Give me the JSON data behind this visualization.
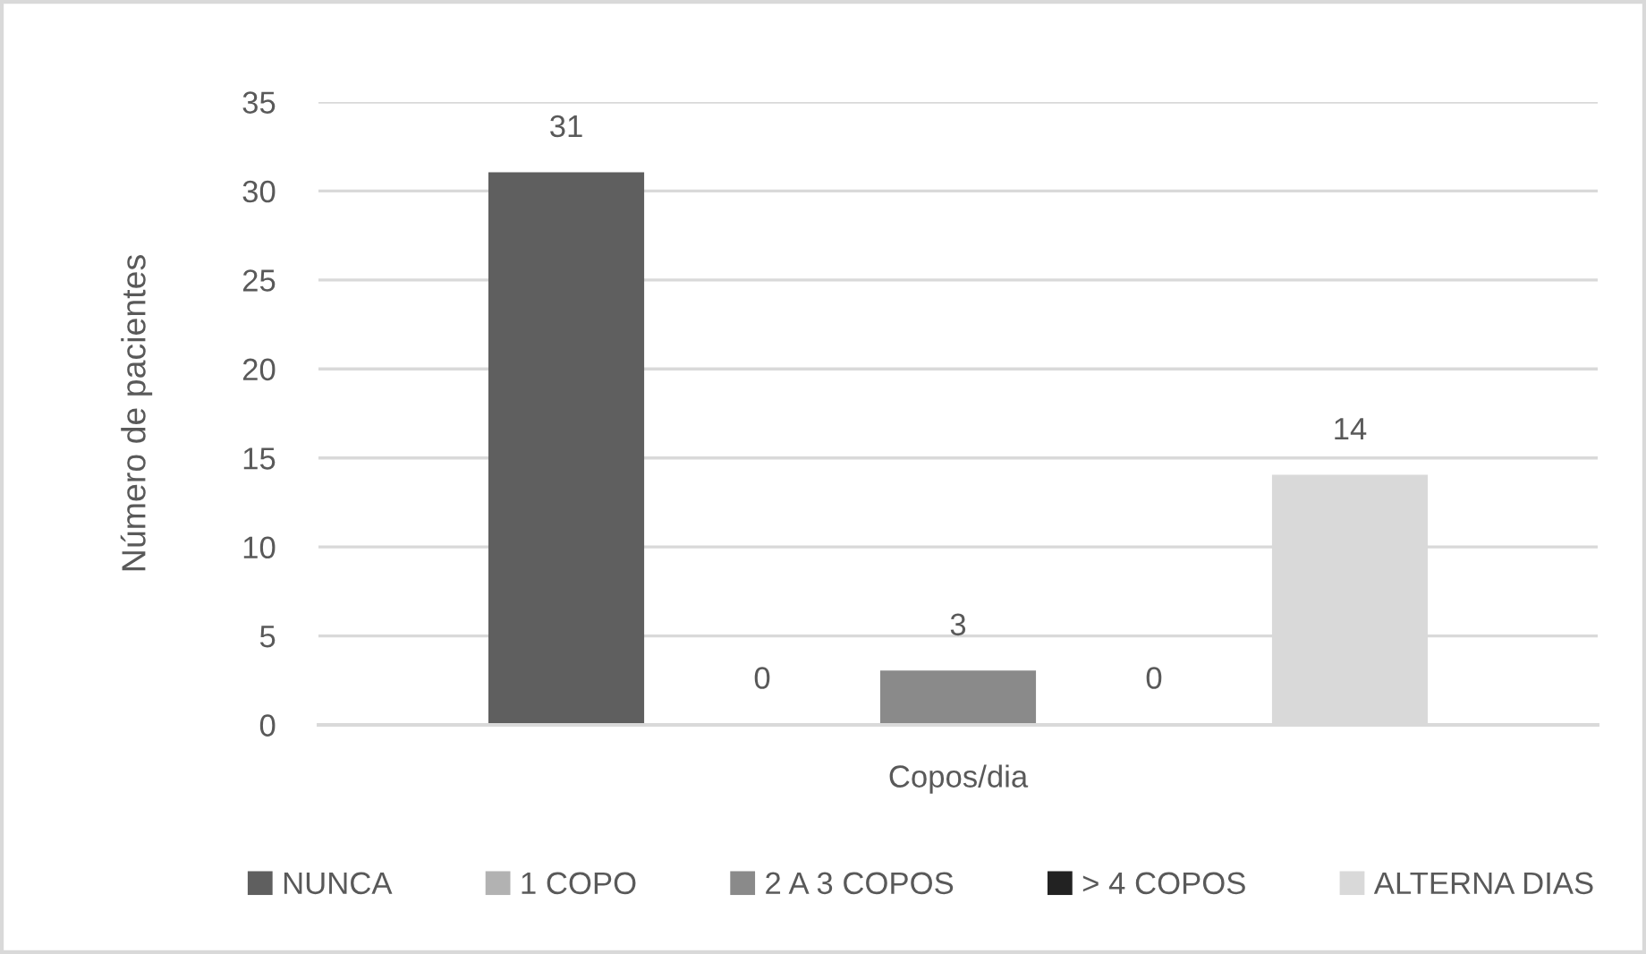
{
  "chart_data": {
    "type": "bar",
    "categories": [
      "Copos/dia"
    ],
    "series": [
      {
        "name": "NUNCA",
        "color": "#5f5f5f",
        "values": [
          31
        ]
      },
      {
        "name": "1 COPO",
        "color": "#b2b2b2",
        "values": [
          0
        ]
      },
      {
        "name": "2 A 3 COPOS",
        "color": "#8a8a8a",
        "values": [
          3
        ]
      },
      {
        "name": "> 4 COPOS",
        "color": "#222222",
        "values": [
          0
        ]
      },
      {
        "name": "ALTERNA DIAS",
        "color": "#d9d9d9",
        "values": [
          14
        ]
      }
    ],
    "ylabel": "Número de pacientes",
    "ylim": [
      0,
      35
    ],
    "yticks": [
      0,
      5,
      10,
      15,
      20,
      25,
      30,
      35
    ],
    "grid": "y",
    "legend": "bottom",
    "data_labels": true
  }
}
